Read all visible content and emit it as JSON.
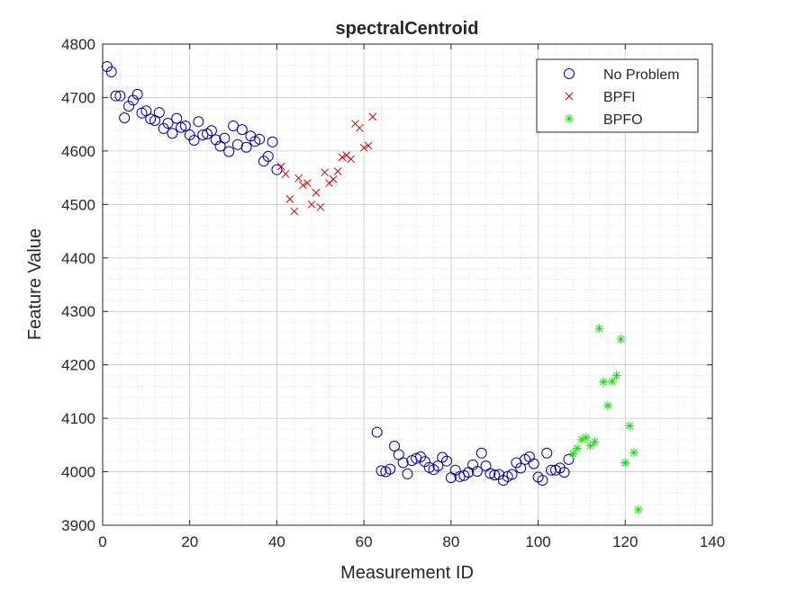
{
  "chart_data": {
    "type": "scatter",
    "title": "spectralCentroid",
    "xlabel": "Measurement ID",
    "ylabel": "Feature Value",
    "xlim": [
      0,
      140
    ],
    "ylim": [
      3900,
      4800
    ],
    "xticks": [
      0,
      20,
      40,
      60,
      80,
      100,
      120,
      140
    ],
    "yticks": [
      3900,
      4000,
      4100,
      4200,
      4300,
      4400,
      4500,
      4600,
      4700,
      4800
    ],
    "grid": true,
    "minor_grid": true,
    "legend_position": "top-right",
    "series": [
      {
        "name": "No Problem",
        "marker": "circle",
        "color": "#0000aa",
        "points": [
          [
            1,
            4758
          ],
          [
            2,
            4748
          ],
          [
            3,
            4703
          ],
          [
            4,
            4703
          ],
          [
            5,
            4662
          ],
          [
            6,
            4684
          ],
          [
            7,
            4695
          ],
          [
            8,
            4706
          ],
          [
            9,
            4671
          ],
          [
            10,
            4675
          ],
          [
            11,
            4660
          ],
          [
            12,
            4657
          ],
          [
            13,
            4672
          ],
          [
            14,
            4642
          ],
          [
            15,
            4652
          ],
          [
            16,
            4633
          ],
          [
            17,
            4661
          ],
          [
            18,
            4644
          ],
          [
            19,
            4647
          ],
          [
            20,
            4630
          ],
          [
            21,
            4620
          ],
          [
            22,
            4655
          ],
          [
            23,
            4630
          ],
          [
            24,
            4632
          ],
          [
            25,
            4638
          ],
          [
            26,
            4621
          ],
          [
            27,
            4609
          ],
          [
            28,
            4624
          ],
          [
            29,
            4599
          ],
          [
            30,
            4647
          ],
          [
            31,
            4612
          ],
          [
            32,
            4640
          ],
          [
            33,
            4607
          ],
          [
            34,
            4628
          ],
          [
            35,
            4618
          ],
          [
            36,
            4622
          ],
          [
            37,
            4581
          ],
          [
            38,
            4590
          ],
          [
            39,
            4617
          ],
          [
            40,
            4565
          ],
          [
            63,
            4074
          ],
          [
            64,
            4002
          ],
          [
            65,
            4000
          ],
          [
            66,
            4005
          ],
          [
            67,
            4048
          ],
          [
            68,
            4032
          ],
          [
            69,
            4017
          ],
          [
            70,
            3996
          ],
          [
            71,
            4021
          ],
          [
            72,
            4025
          ],
          [
            73,
            4028
          ],
          [
            74,
            4019
          ],
          [
            75,
            4008
          ],
          [
            76,
            4004
          ],
          [
            77,
            4011
          ],
          [
            78,
            4027
          ],
          [
            79,
            4020
          ],
          [
            80,
            3989
          ],
          [
            81,
            4003
          ],
          [
            82,
            3991
          ],
          [
            83,
            3993
          ],
          [
            84,
            3999
          ],
          [
            85,
            4013
          ],
          [
            86,
            4001
          ],
          [
            87,
            4035
          ],
          [
            88,
            4011
          ],
          [
            89,
            3997
          ],
          [
            90,
            3994
          ],
          [
            91,
            3995
          ],
          [
            92,
            3984
          ],
          [
            93,
            3991
          ],
          [
            94,
            3995
          ],
          [
            95,
            4017
          ],
          [
            96,
            4007
          ],
          [
            97,
            4023
          ],
          [
            98,
            4028
          ],
          [
            99,
            4015
          ],
          [
            100,
            3990
          ],
          [
            101,
            3984
          ],
          [
            102,
            4035
          ],
          [
            103,
            4003
          ],
          [
            104,
            4003
          ],
          [
            105,
            4007
          ],
          [
            106,
            3999
          ],
          [
            107,
            4023
          ]
        ]
      },
      {
        "name": "BPFI",
        "marker": "x",
        "color": "#cc0000",
        "points": [
          [
            41,
            4571
          ],
          [
            42,
            4557
          ],
          [
            43,
            4510
          ],
          [
            44,
            4487
          ],
          [
            45,
            4549
          ],
          [
            46,
            4536
          ],
          [
            47,
            4540
          ],
          [
            48,
            4500
          ],
          [
            49,
            4522
          ],
          [
            50,
            4495
          ],
          [
            51,
            4560
          ],
          [
            52,
            4540
          ],
          [
            53,
            4547
          ],
          [
            54,
            4562
          ],
          [
            55,
            4588
          ],
          [
            56,
            4592
          ],
          [
            57,
            4585
          ],
          [
            58,
            4651
          ],
          [
            59,
            4643
          ],
          [
            60,
            4606
          ],
          [
            61,
            4610
          ],
          [
            62,
            4664
          ]
        ]
      },
      {
        "name": "BPFO",
        "marker": "asterisk",
        "color": "#22dd22",
        "points": [
          [
            108,
            4034
          ],
          [
            109,
            4044
          ],
          [
            110,
            4060
          ],
          [
            111,
            4064
          ],
          [
            112,
            4049
          ],
          [
            113,
            4056
          ],
          [
            114,
            4268
          ],
          [
            115,
            4168
          ],
          [
            116,
            4124
          ],
          [
            117,
            4169
          ],
          [
            118,
            4180
          ],
          [
            119,
            4248
          ],
          [
            120,
            4017
          ],
          [
            121,
            4086
          ],
          [
            122,
            4036
          ],
          [
            123,
            3929
          ]
        ]
      }
    ]
  }
}
